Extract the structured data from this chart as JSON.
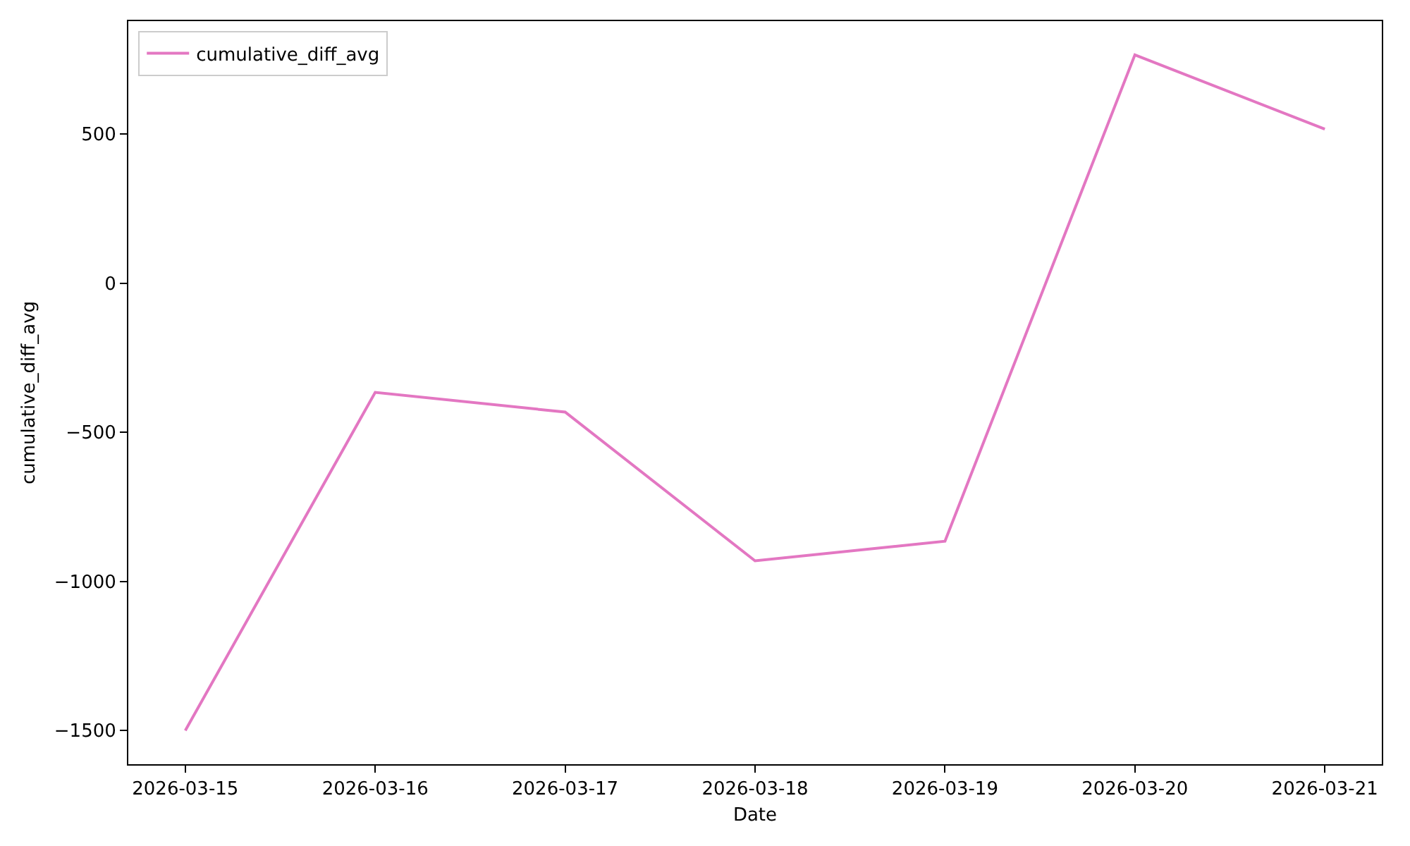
{
  "chart_data": {
    "type": "line",
    "xlabel": "Date",
    "ylabel": "cumulative_diff_avg",
    "x": [
      "2026-03-15",
      "2026-03-16",
      "2026-03-17",
      "2026-03-18",
      "2026-03-19",
      "2026-03-20",
      "2026-03-21"
    ],
    "series": [
      {
        "name": "cumulative_diff_avg",
        "color": "#e377c2",
        "values": [
          -1500,
          -366,
          -432,
          -931,
          -865,
          766,
          517
        ]
      }
    ],
    "xlim": [
      "2026-03-14T16:48",
      "2026-03-21T07:12"
    ],
    "xticks": [
      "2026-03-15",
      "2026-03-16",
      "2026-03-17",
      "2026-03-18",
      "2026-03-19",
      "2026-03-20",
      "2026-03-21"
    ],
    "ylim": [
      -1613,
      879
    ],
    "yticks": [
      -1500,
      -1000,
      -500,
      0,
      500
    ],
    "legend": "top left",
    "grid": false,
    "line_style": "solid"
  }
}
